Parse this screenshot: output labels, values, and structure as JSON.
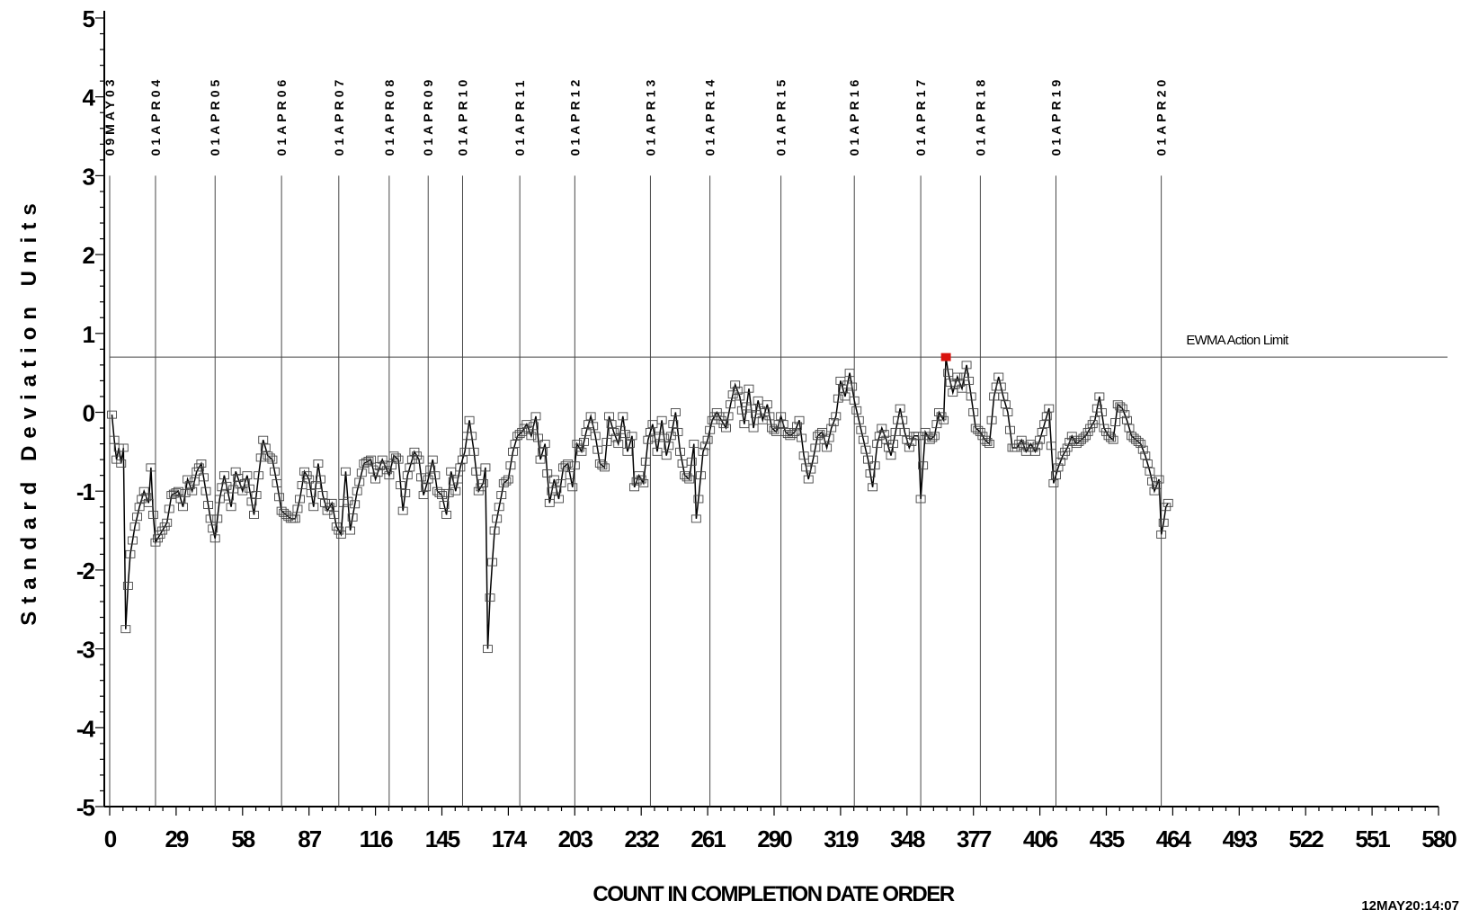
{
  "chart_data": {
    "type": "line",
    "xlabel": "COUNT IN COMPLETION DATE ORDER",
    "ylabel": "Standard Deviation Units",
    "xlim": [
      0,
      580
    ],
    "ylim": [
      -5,
      5
    ],
    "x_ticks": [
      0,
      29,
      58,
      87,
      116,
      145,
      174,
      203,
      232,
      261,
      290,
      319,
      348,
      377,
      406,
      435,
      464,
      493,
      522,
      551,
      580
    ],
    "y_ticks": [
      5,
      4,
      3,
      2,
      1,
      0,
      -1,
      -2,
      -3,
      -4,
      -5
    ],
    "grid": false,
    "marker": "open-square",
    "line_color": "#000000",
    "highlight_color": "#d9140f",
    "action_limit": {
      "value": 0.7,
      "label": "EWMA Action Limit"
    },
    "date_markers": [
      {
        "x": 0,
        "label": "09MAY03"
      },
      {
        "x": 20,
        "label": "01APR04"
      },
      {
        "x": 46,
        "label": "01APR05"
      },
      {
        "x": 75,
        "label": "01APR06"
      },
      {
        "x": 100,
        "label": "01APR07"
      },
      {
        "x": 122,
        "label": "01APR08"
      },
      {
        "x": 139,
        "label": "01APR09"
      },
      {
        "x": 154,
        "label": "01APR10"
      },
      {
        "x": 179,
        "label": "01APR11"
      },
      {
        "x": 203,
        "label": "01APR12"
      },
      {
        "x": 236,
        "label": "01APR13"
      },
      {
        "x": 262,
        "label": "01APR14"
      },
      {
        "x": 293,
        "label": "01APR15"
      },
      {
        "x": 325,
        "label": "01APR16"
      },
      {
        "x": 354,
        "label": "01APR17"
      },
      {
        "x": 380,
        "label": "01APR18"
      },
      {
        "x": 413,
        "label": "01APR19"
      },
      {
        "x": 459,
        "label": "01APR20"
      }
    ],
    "series_keypoints": [
      [
        1,
        -0.03
      ],
      [
        2,
        -0.35
      ],
      [
        3,
        -0.6
      ],
      [
        4,
        -0.45
      ],
      [
        5,
        -0.65
      ],
      [
        6,
        -0.45
      ],
      [
        7,
        -2.75
      ],
      [
        8,
        -2.2
      ],
      [
        9,
        -1.8
      ],
      [
        11,
        -1.45
      ],
      [
        13,
        -1.2
      ],
      [
        15,
        -1.0
      ],
      [
        17,
        -1.15
      ],
      [
        18,
        -0.7
      ],
      [
        19,
        -1.3
      ],
      [
        20,
        -1.65
      ],
      [
        22,
        -1.55
      ],
      [
        25,
        -1.4
      ],
      [
        27,
        -1.05
      ],
      [
        30,
        -1.0
      ],
      [
        32,
        -1.2
      ],
      [
        34,
        -0.85
      ],
      [
        36,
        -1.0
      ],
      [
        38,
        -0.75
      ],
      [
        40,
        -0.65
      ],
      [
        42,
        -1.0
      ],
      [
        44,
        -1.35
      ],
      [
        46,
        -1.6
      ],
      [
        48,
        -1.1
      ],
      [
        50,
        -0.8
      ],
      [
        53,
        -1.2
      ],
      [
        55,
        -0.75
      ],
      [
        58,
        -1.0
      ],
      [
        60,
        -0.8
      ],
      [
        63,
        -1.3
      ],
      [
        65,
        -0.8
      ],
      [
        67,
        -0.35
      ],
      [
        69,
        -0.55
      ],
      [
        71,
        -0.6
      ],
      [
        73,
        -0.9
      ],
      [
        75,
        -1.25
      ],
      [
        77,
        -1.3
      ],
      [
        79,
        -1.35
      ],
      [
        81,
        -1.35
      ],
      [
        83,
        -1.1
      ],
      [
        85,
        -0.75
      ],
      [
        87,
        -0.85
      ],
      [
        89,
        -1.2
      ],
      [
        91,
        -0.65
      ],
      [
        93,
        -1.05
      ],
      [
        95,
        -1.25
      ],
      [
        97,
        -1.15
      ],
      [
        99,
        -1.45
      ],
      [
        101,
        -1.55
      ],
      [
        103,
        -0.75
      ],
      [
        105,
        -1.5
      ],
      [
        108,
        -1.0
      ],
      [
        111,
        -0.65
      ],
      [
        114,
        -0.6
      ],
      [
        116,
        -0.85
      ],
      [
        119,
        -0.6
      ],
      [
        122,
        -0.8
      ],
      [
        124,
        -0.55
      ],
      [
        126,
        -0.6
      ],
      [
        128,
        -1.25
      ],
      [
        130,
        -0.8
      ],
      [
        133,
        -0.5
      ],
      [
        135,
        -0.6
      ],
      [
        137,
        -1.05
      ],
      [
        139,
        -0.85
      ],
      [
        141,
        -0.6
      ],
      [
        143,
        -1.0
      ],
      [
        145,
        -1.05
      ],
      [
        147,
        -1.3
      ],
      [
        149,
        -0.75
      ],
      [
        151,
        -1.0
      ],
      [
        153,
        -0.7
      ],
      [
        155,
        -0.5
      ],
      [
        157,
        -0.1
      ],
      [
        159,
        -0.5
      ],
      [
        161,
        -1.0
      ],
      [
        163,
        -0.9
      ],
      [
        164,
        -0.7
      ],
      [
        165,
        -3.0
      ],
      [
        166,
        -2.35
      ],
      [
        167,
        -1.9
      ],
      [
        168,
        -1.5
      ],
      [
        170,
        -1.2
      ],
      [
        172,
        -0.9
      ],
      [
        174,
        -0.85
      ],
      [
        176,
        -0.5
      ],
      [
        178,
        -0.3
      ],
      [
        180,
        -0.25
      ],
      [
        182,
        -0.15
      ],
      [
        184,
        -0.3
      ],
      [
        186,
        -0.05
      ],
      [
        188,
        -0.6
      ],
      [
        190,
        -0.4
      ],
      [
        192,
        -1.15
      ],
      [
        194,
        -0.85
      ],
      [
        196,
        -1.1
      ],
      [
        198,
        -0.7
      ],
      [
        200,
        -0.65
      ],
      [
        202,
        -0.95
      ],
      [
        204,
        -0.4
      ],
      [
        206,
        -0.5
      ],
      [
        208,
        -0.25
      ],
      [
        210,
        -0.05
      ],
      [
        212,
        -0.3
      ],
      [
        214,
        -0.65
      ],
      [
        216,
        -0.7
      ],
      [
        218,
        -0.05
      ],
      [
        220,
        -0.25
      ],
      [
        222,
        -0.4
      ],
      [
        224,
        -0.05
      ],
      [
        226,
        -0.5
      ],
      [
        228,
        -0.3
      ],
      [
        229,
        -0.95
      ],
      [
        231,
        -0.8
      ],
      [
        233,
        -0.9
      ],
      [
        235,
        -0.35
      ],
      [
        237,
        -0.15
      ],
      [
        239,
        -0.5
      ],
      [
        241,
        -0.1
      ],
      [
        243,
        -0.55
      ],
      [
        245,
        -0.3
      ],
      [
        247,
        0.0
      ],
      [
        249,
        -0.5
      ],
      [
        251,
        -0.8
      ],
      [
        253,
        -0.85
      ],
      [
        255,
        -0.4
      ],
      [
        256,
        -1.35
      ],
      [
        257,
        -1.1
      ],
      [
        259,
        -0.5
      ],
      [
        261,
        -0.35
      ],
      [
        263,
        -0.1
      ],
      [
        265,
        0.0
      ],
      [
        267,
        -0.1
      ],
      [
        269,
        -0.2
      ],
      [
        271,
        0.1
      ],
      [
        273,
        0.35
      ],
      [
        275,
        0.2
      ],
      [
        277,
        -0.15
      ],
      [
        279,
        0.3
      ],
      [
        281,
        -0.2
      ],
      [
        283,
        0.15
      ],
      [
        285,
        -0.1
      ],
      [
        287,
        0.1
      ],
      [
        289,
        -0.2
      ],
      [
        291,
        -0.25
      ],
      [
        293,
        -0.05
      ],
      [
        295,
        -0.25
      ],
      [
        297,
        -0.3
      ],
      [
        299,
        -0.25
      ],
      [
        301,
        -0.1
      ],
      [
        303,
        -0.55
      ],
      [
        305,
        -0.85
      ],
      [
        307,
        -0.6
      ],
      [
        309,
        -0.3
      ],
      [
        311,
        -0.25
      ],
      [
        313,
        -0.45
      ],
      [
        315,
        -0.2
      ],
      [
        317,
        -0.05
      ],
      [
        319,
        0.4
      ],
      [
        321,
        0.2
      ],
      [
        323,
        0.5
      ],
      [
        325,
        0.15
      ],
      [
        327,
        -0.1
      ],
      [
        329,
        -0.35
      ],
      [
        331,
        -0.6
      ],
      [
        333,
        -0.95
      ],
      [
        335,
        -0.4
      ],
      [
        337,
        -0.2
      ],
      [
        339,
        -0.35
      ],
      [
        341,
        -0.55
      ],
      [
        343,
        -0.25
      ],
      [
        345,
        0.05
      ],
      [
        347,
        -0.25
      ],
      [
        349,
        -0.45
      ],
      [
        351,
        -0.3
      ],
      [
        353,
        -0.3
      ],
      [
        354,
        -1.1
      ],
      [
        356,
        -0.25
      ],
      [
        358,
        -0.35
      ],
      [
        360,
        -0.3
      ],
      [
        362,
        0.0
      ],
      [
        364,
        -0.1
      ],
      [
        365,
        0.7
      ],
      [
        366,
        0.5
      ],
      [
        368,
        0.25
      ],
      [
        370,
        0.45
      ],
      [
        372,
        0.3
      ],
      [
        374,
        0.6
      ],
      [
        376,
        0.2
      ],
      [
        378,
        -0.2
      ],
      [
        380,
        -0.25
      ],
      [
        382,
        -0.35
      ],
      [
        384,
        -0.4
      ],
      [
        386,
        0.2
      ],
      [
        388,
        0.45
      ],
      [
        390,
        0.2
      ],
      [
        392,
        0.0
      ],
      [
        394,
        -0.45
      ],
      [
        396,
        -0.45
      ],
      [
        398,
        -0.35
      ],
      [
        400,
        -0.5
      ],
      [
        402,
        -0.4
      ],
      [
        404,
        -0.5
      ],
      [
        406,
        -0.35
      ],
      [
        408,
        -0.15
      ],
      [
        410,
        0.05
      ],
      [
        412,
        -0.9
      ],
      [
        414,
        -0.7
      ],
      [
        416,
        -0.55
      ],
      [
        418,
        -0.45
      ],
      [
        420,
        -0.3
      ],
      [
        422,
        -0.4
      ],
      [
        424,
        -0.35
      ],
      [
        426,
        -0.3
      ],
      [
        428,
        -0.2
      ],
      [
        430,
        -0.1
      ],
      [
        432,
        0.2
      ],
      [
        434,
        -0.2
      ],
      [
        436,
        -0.3
      ],
      [
        438,
        -0.35
      ],
      [
        440,
        0.1
      ],
      [
        442,
        0.05
      ],
      [
        444,
        -0.1
      ],
      [
        446,
        -0.3
      ],
      [
        448,
        -0.35
      ],
      [
        450,
        -0.4
      ],
      [
        452,
        -0.55
      ],
      [
        454,
        -0.75
      ],
      [
        456,
        -1.0
      ],
      [
        458,
        -0.85
      ],
      [
        459,
        -1.55
      ],
      [
        460,
        -1.4
      ],
      [
        461,
        -1.2
      ],
      [
        462,
        -1.15
      ]
    ]
  },
  "footer": {
    "timestamp": "12MAY20:14:07"
  }
}
